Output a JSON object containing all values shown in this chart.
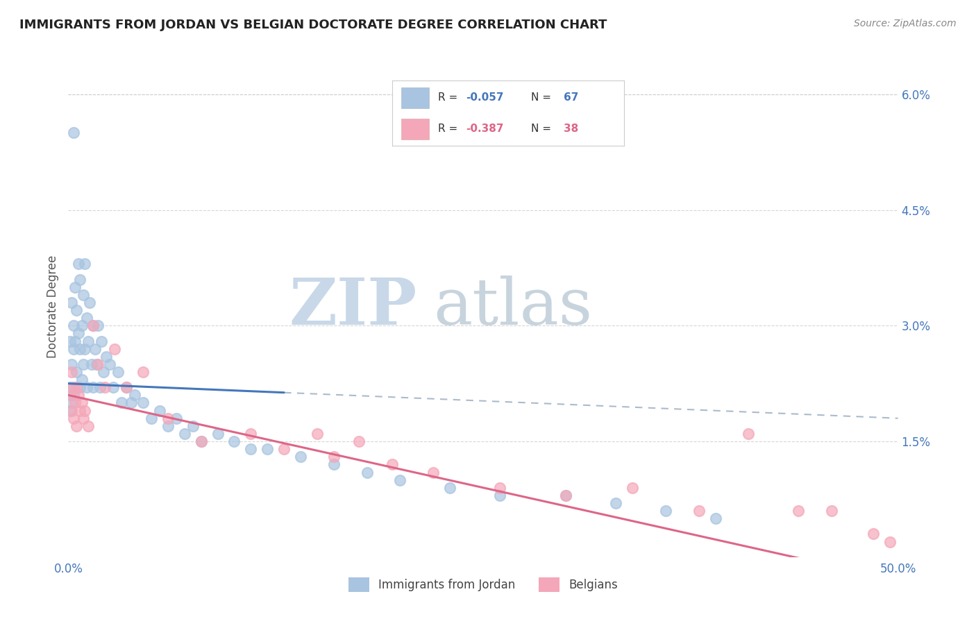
{
  "title": "IMMIGRANTS FROM JORDAN VS BELGIAN DOCTORATE DEGREE CORRELATION CHART",
  "source_text": "Source: ZipAtlas.com",
  "ylabel": "Doctorate Degree",
  "xlim": [
    0.0,
    0.5
  ],
  "ylim": [
    0.0,
    0.065
  ],
  "xticks": [
    0.0,
    0.125,
    0.25,
    0.375,
    0.5
  ],
  "xtick_labels": [
    "0.0%",
    "",
    "",
    "",
    "50.0%"
  ],
  "yticks_right": [
    0.0,
    0.015,
    0.03,
    0.045,
    0.06
  ],
  "ytick_labels_right": [
    "",
    "1.5%",
    "3.0%",
    "4.5%",
    "6.0%"
  ],
  "series1_color": "#a8c4e0",
  "series2_color": "#f4a7b9",
  "trend1_color": "#4477bb",
  "trend2_color": "#dd6688",
  "dash_color": "#aabbcc",
  "watermark_zip": "ZIP",
  "watermark_atlas": "atlas",
  "watermark_color_zip": "#c8d8e8",
  "watermark_color_atlas": "#c8d4dd",
  "background_color": "#ffffff",
  "grid_color": "#cccccc",
  "title_color": "#222222",
  "label_color": "#4477bb",
  "jordan_x": [
    0.001,
    0.001,
    0.001,
    0.002,
    0.002,
    0.002,
    0.003,
    0.003,
    0.003,
    0.004,
    0.004,
    0.005,
    0.005,
    0.006,
    0.006,
    0.007,
    0.007,
    0.007,
    0.008,
    0.008,
    0.009,
    0.009,
    0.01,
    0.01,
    0.011,
    0.011,
    0.012,
    0.013,
    0.014,
    0.015,
    0.015,
    0.016,
    0.017,
    0.018,
    0.019,
    0.02,
    0.021,
    0.023,
    0.025,
    0.027,
    0.03,
    0.032,
    0.035,
    0.038,
    0.04,
    0.045,
    0.05,
    0.055,
    0.06,
    0.065,
    0.07,
    0.075,
    0.08,
    0.09,
    0.1,
    0.11,
    0.12,
    0.14,
    0.16,
    0.18,
    0.2,
    0.23,
    0.26,
    0.3,
    0.33,
    0.36,
    0.39
  ],
  "jordan_y": [
    0.028,
    0.022,
    0.019,
    0.033,
    0.025,
    0.02,
    0.03,
    0.027,
    0.021,
    0.035,
    0.028,
    0.032,
    0.024,
    0.038,
    0.029,
    0.036,
    0.027,
    0.022,
    0.03,
    0.023,
    0.034,
    0.025,
    0.038,
    0.027,
    0.031,
    0.022,
    0.028,
    0.033,
    0.025,
    0.03,
    0.022,
    0.027,
    0.025,
    0.03,
    0.022,
    0.028,
    0.024,
    0.026,
    0.025,
    0.022,
    0.024,
    0.02,
    0.022,
    0.02,
    0.021,
    0.02,
    0.018,
    0.019,
    0.017,
    0.018,
    0.016,
    0.017,
    0.015,
    0.016,
    0.015,
    0.014,
    0.014,
    0.013,
    0.012,
    0.011,
    0.01,
    0.009,
    0.008,
    0.008,
    0.007,
    0.006,
    0.005
  ],
  "jordan_outlier_x": [
    0.003
  ],
  "jordan_outlier_y": [
    0.055
  ],
  "belgian_x": [
    0.001,
    0.002,
    0.002,
    0.003,
    0.003,
    0.004,
    0.005,
    0.005,
    0.006,
    0.007,
    0.008,
    0.009,
    0.01,
    0.012,
    0.015,
    0.018,
    0.022,
    0.028,
    0.035,
    0.045,
    0.06,
    0.08,
    0.11,
    0.13,
    0.15,
    0.16,
    0.175,
    0.195,
    0.22,
    0.26,
    0.3,
    0.34,
    0.38,
    0.41,
    0.44,
    0.46,
    0.485,
    0.495
  ],
  "belgian_y": [
    0.021,
    0.024,
    0.019,
    0.022,
    0.018,
    0.02,
    0.022,
    0.017,
    0.021,
    0.019,
    0.02,
    0.018,
    0.019,
    0.017,
    0.03,
    0.025,
    0.022,
    0.027,
    0.022,
    0.024,
    0.018,
    0.015,
    0.016,
    0.014,
    0.016,
    0.013,
    0.015,
    0.012,
    0.011,
    0.009,
    0.008,
    0.009,
    0.006,
    0.016,
    0.006,
    0.006,
    0.003,
    0.002
  ]
}
